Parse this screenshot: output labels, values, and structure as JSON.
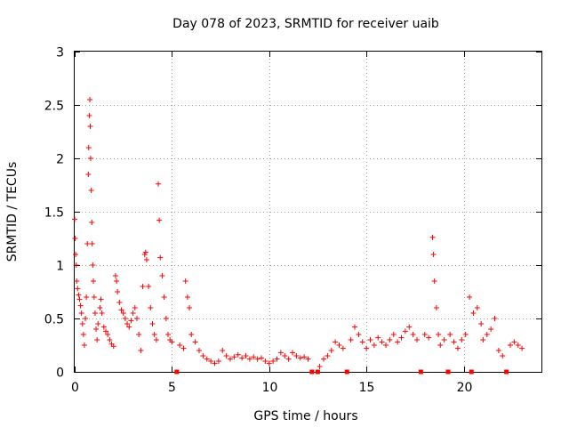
{
  "chart_data": {
    "type": "scatter",
    "title": "Day 078 of 2023, SRMTID for receiver uaib",
    "xlabel": "GPS time / hours",
    "ylabel": "SRMTID / TECUs",
    "xlim": [
      0,
      24
    ],
    "ylim": [
      0,
      3
    ],
    "xticks": [
      0,
      5,
      10,
      15,
      20
    ],
    "xtick_labels": [
      "0",
      "5",
      "10",
      "15",
      "20"
    ],
    "yticks": [
      0,
      0.5,
      1,
      1.5,
      2,
      2.5,
      3
    ],
    "ytick_labels": [
      "0",
      "0.5",
      "1",
      "1.5",
      "2",
      "2.5",
      "3"
    ],
    "grid": true,
    "marker_color": "#ff0000",
    "series": [
      {
        "name": "SRMTID",
        "marker": "plus",
        "points": [
          [
            0.0,
            1.43
          ],
          [
            0.02,
            1.25
          ],
          [
            0.05,
            1.1
          ],
          [
            0.08,
            1.0
          ],
          [
            0.1,
            0.85
          ],
          [
            0.15,
            0.78
          ],
          [
            0.2,
            0.72
          ],
          [
            0.25,
            0.68
          ],
          [
            0.3,
            0.62
          ],
          [
            0.35,
            0.55
          ],
          [
            0.4,
            0.45
          ],
          [
            0.45,
            0.35
          ],
          [
            0.5,
            0.25
          ],
          [
            0.55,
            0.5
          ],
          [
            0.6,
            0.7
          ],
          [
            0.65,
            1.2
          ],
          [
            0.7,
            1.85
          ],
          [
            0.72,
            2.1
          ],
          [
            0.75,
            2.4
          ],
          [
            0.78,
            2.55
          ],
          [
            0.8,
            2.3
          ],
          [
            0.82,
            2.0
          ],
          [
            0.85,
            1.7
          ],
          [
            0.88,
            1.4
          ],
          [
            0.9,
            1.2
          ],
          [
            0.93,
            1.0
          ],
          [
            0.96,
            0.85
          ],
          [
            1.0,
            0.7
          ],
          [
            1.05,
            0.55
          ],
          [
            1.1,
            0.4
          ],
          [
            1.15,
            0.3
          ],
          [
            1.2,
            0.45
          ],
          [
            1.3,
            0.6
          ],
          [
            1.35,
            0.68
          ],
          [
            1.4,
            0.55
          ],
          [
            1.5,
            0.42
          ],
          [
            1.6,
            0.38
          ],
          [
            1.7,
            0.35
          ],
          [
            1.8,
            0.3
          ],
          [
            1.9,
            0.26
          ],
          [
            2.0,
            0.24
          ],
          [
            2.1,
            0.9
          ],
          [
            2.15,
            0.85
          ],
          [
            2.2,
            0.75
          ],
          [
            2.3,
            0.65
          ],
          [
            2.4,
            0.58
          ],
          [
            2.5,
            0.55
          ],
          [
            2.6,
            0.5
          ],
          [
            2.7,
            0.45
          ],
          [
            2.8,
            0.42
          ],
          [
            2.9,
            0.48
          ],
          [
            3.0,
            0.55
          ],
          [
            3.1,
            0.6
          ],
          [
            3.2,
            0.5
          ],
          [
            3.3,
            0.35
          ],
          [
            3.4,
            0.2
          ],
          [
            3.5,
            0.8
          ],
          [
            3.6,
            1.1
          ],
          [
            3.65,
            1.12
          ],
          [
            3.7,
            1.05
          ],
          [
            3.8,
            0.8
          ],
          [
            3.9,
            0.6
          ],
          [
            4.0,
            0.45
          ],
          [
            4.1,
            0.35
          ],
          [
            4.2,
            0.3
          ],
          [
            4.3,
            1.76
          ],
          [
            4.35,
            1.42
          ],
          [
            4.4,
            1.07
          ],
          [
            4.5,
            0.9
          ],
          [
            4.6,
            0.7
          ],
          [
            4.7,
            0.5
          ],
          [
            4.8,
            0.35
          ],
          [
            4.9,
            0.3
          ],
          [
            5.0,
            0.28
          ],
          [
            5.25,
            0.0
          ],
          [
            5.4,
            0.25
          ],
          [
            5.6,
            0.22
          ],
          [
            5.7,
            0.85
          ],
          [
            5.8,
            0.7
          ],
          [
            5.9,
            0.6
          ],
          [
            6.0,
            0.35
          ],
          [
            6.2,
            0.28
          ],
          [
            6.4,
            0.2
          ],
          [
            6.6,
            0.15
          ],
          [
            6.8,
            0.12
          ],
          [
            7.0,
            0.1
          ],
          [
            7.2,
            0.08
          ],
          [
            7.4,
            0.1
          ],
          [
            7.6,
            0.2
          ],
          [
            7.8,
            0.15
          ],
          [
            8.0,
            0.12
          ],
          [
            8.2,
            0.14
          ],
          [
            8.4,
            0.16
          ],
          [
            8.6,
            0.13
          ],
          [
            8.8,
            0.15
          ],
          [
            9.0,
            0.12
          ],
          [
            9.2,
            0.14
          ],
          [
            9.4,
            0.12
          ],
          [
            9.6,
            0.13
          ],
          [
            9.8,
            0.1
          ],
          [
            10.0,
            0.08
          ],
          [
            10.2,
            0.1
          ],
          [
            10.4,
            0.12
          ],
          [
            10.6,
            0.18
          ],
          [
            10.8,
            0.15
          ],
          [
            11.0,
            0.12
          ],
          [
            11.2,
            0.18
          ],
          [
            11.4,
            0.15
          ],
          [
            11.6,
            0.13
          ],
          [
            11.8,
            0.14
          ],
          [
            12.0,
            0.12
          ],
          [
            12.2,
            0.0
          ],
          [
            12.5,
            0.0
          ],
          [
            12.6,
            0.05
          ],
          [
            12.8,
            0.12
          ],
          [
            13.0,
            0.15
          ],
          [
            13.2,
            0.2
          ],
          [
            13.4,
            0.28
          ],
          [
            13.6,
            0.25
          ],
          [
            13.8,
            0.22
          ],
          [
            14.0,
            0.0
          ],
          [
            14.2,
            0.3
          ],
          [
            14.4,
            0.42
          ],
          [
            14.6,
            0.35
          ],
          [
            14.8,
            0.28
          ],
          [
            15.0,
            0.22
          ],
          [
            15.2,
            0.3
          ],
          [
            15.4,
            0.25
          ],
          [
            15.6,
            0.32
          ],
          [
            15.8,
            0.28
          ],
          [
            16.0,
            0.25
          ],
          [
            16.2,
            0.3
          ],
          [
            16.4,
            0.35
          ],
          [
            16.6,
            0.28
          ],
          [
            16.8,
            0.32
          ],
          [
            17.0,
            0.38
          ],
          [
            17.2,
            0.42
          ],
          [
            17.4,
            0.35
          ],
          [
            17.6,
            0.3
          ],
          [
            17.8,
            0.0
          ],
          [
            18.0,
            0.35
          ],
          [
            18.2,
            0.32
          ],
          [
            18.4,
            1.26
          ],
          [
            18.45,
            1.1
          ],
          [
            18.5,
            0.85
          ],
          [
            18.6,
            0.6
          ],
          [
            18.7,
            0.35
          ],
          [
            18.8,
            0.25
          ],
          [
            19.0,
            0.3
          ],
          [
            19.2,
            0.0
          ],
          [
            19.3,
            0.35
          ],
          [
            19.5,
            0.28
          ],
          [
            19.7,
            0.22
          ],
          [
            19.9,
            0.3
          ],
          [
            20.1,
            0.35
          ],
          [
            20.3,
            0.7
          ],
          [
            20.4,
            0.0
          ],
          [
            20.5,
            0.55
          ],
          [
            20.7,
            0.6
          ],
          [
            20.9,
            0.45
          ],
          [
            21.0,
            0.3
          ],
          [
            21.2,
            0.35
          ],
          [
            21.4,
            0.4
          ],
          [
            21.6,
            0.5
          ],
          [
            21.8,
            0.2
          ],
          [
            22.0,
            0.15
          ],
          [
            22.2,
            0.0
          ],
          [
            22.4,
            0.25
          ],
          [
            22.6,
            0.28
          ],
          [
            22.8,
            0.25
          ],
          [
            23.0,
            0.22
          ]
        ]
      }
    ]
  }
}
